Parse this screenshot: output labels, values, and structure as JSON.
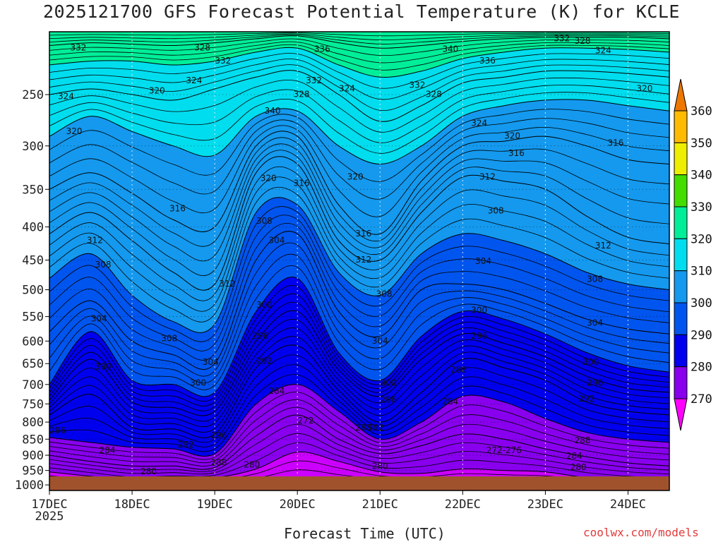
{
  "chart_data": {
    "type": "heatmap",
    "title": "2025121700 GFS Forecast Potential Temperature (K) for KCLE",
    "xlabel": "Forecast Time (UTC)",
    "ylabel": "",
    "credit": "coolwx.com/models",
    "x_ticks": [
      {
        "label": "17DEC",
        "sub": "2025",
        "day": 0
      },
      {
        "label": "18DEC",
        "sub": "",
        "day": 1
      },
      {
        "label": "19DEC",
        "sub": "",
        "day": 2
      },
      {
        "label": "20DEC",
        "sub": "",
        "day": 3
      },
      {
        "label": "21DEC",
        "sub": "",
        "day": 4
      },
      {
        "label": "22DEC",
        "sub": "",
        "day": 5
      },
      {
        "label": "23DEC",
        "sub": "",
        "day": 6
      },
      {
        "label": "24DEC",
        "sub": "",
        "day": 7
      }
    ],
    "xlim": [
      0,
      7.5
    ],
    "y_ticks": [
      250,
      300,
      350,
      400,
      450,
      500,
      550,
      600,
      650,
      700,
      750,
      800,
      850,
      900,
      950,
      1000
    ],
    "ylim": [
      200,
      1020
    ],
    "y_scale": "log",
    "colorbar": {
      "levels": [
        270,
        280,
        290,
        300,
        310,
        320,
        330,
        340,
        350,
        360
      ],
      "colors": [
        "#ff00ff",
        "#cc00ff",
        "#8800ee",
        "#0000ee",
        "#0055ee",
        "#1499ee",
        "#00ddee",
        "#00ee99",
        "#44dd00",
        "#eeee00",
        "#ffbb00",
        "#ee7700"
      ]
    },
    "times": [
      0,
      0.5,
      1,
      1.5,
      2,
      2.5,
      3,
      3.5,
      4,
      4.5,
      5,
      5.5,
      6,
      6.5,
      7,
      7.5
    ],
    "isentropes": [
      {
        "theta": 272,
        "p": [
          1010,
          1010,
          1010,
          1010,
          1010,
          1010,
          1010,
          1010,
          1010,
          1010,
          1010,
          1010,
          1010,
          1010,
          1010,
          1010
        ]
      },
      {
        "theta": 280,
        "p": [
          955,
          970,
          985,
          980,
          975,
          945,
          890,
          920,
          955,
          960,
          945,
          950,
          955,
          975,
          985,
          990
        ]
      },
      {
        "theta": 284,
        "p": [
          900,
          920,
          935,
          935,
          940,
          840,
          780,
          850,
          895,
          870,
          835,
          850,
          880,
          905,
          925,
          935
        ]
      },
      {
        "theta": 288,
        "p": [
          845,
          860,
          875,
          880,
          895,
          750,
          700,
          770,
          850,
          800,
          730,
          745,
          790,
          830,
          850,
          860
        ]
      },
      {
        "theta": 292,
        "p": [
          780,
          725,
          815,
          820,
          835,
          660,
          610,
          715,
          800,
          720,
          640,
          660,
          690,
          745,
          770,
          780
        ]
      },
      {
        "theta": 296,
        "p": [
          740,
          640,
          745,
          760,
          770,
          600,
          540,
          665,
          730,
          640,
          585,
          605,
          635,
          680,
          710,
          720
        ]
      },
      {
        "theta": 300,
        "p": [
          700,
          580,
          690,
          700,
          720,
          540,
          480,
          625,
          690,
          590,
          540,
          555,
          585,
          625,
          655,
          670
        ]
      },
      {
        "theta": 304,
        "p": [
          580,
          520,
          600,
          630,
          650,
          450,
          410,
          540,
          590,
          500,
          490,
          500,
          525,
          555,
          575,
          585
        ]
      },
      {
        "theta": 308,
        "p": [
          480,
          440,
          510,
          560,
          565,
          380,
          370,
          470,
          510,
          440,
          410,
          420,
          440,
          470,
          490,
          500
        ]
      },
      {
        "theta": 312,
        "p": [
          410,
          380,
          420,
          470,
          490,
          330,
          320,
          420,
          450,
          380,
          335,
          340,
          350,
          385,
          415,
          425
        ]
      },
      {
        "theta": 316,
        "p": [
          350,
          330,
          355,
          390,
          400,
          300,
          290,
          370,
          410,
          340,
          300,
          295,
          290,
          300,
          315,
          320
        ]
      },
      {
        "theta": 320,
        "p": [
          290,
          270,
          285,
          300,
          310,
          270,
          265,
          300,
          320,
          300,
          270,
          260,
          255,
          255,
          260,
          265
        ]
      },
      {
        "theta": 324,
        "p": [
          250,
          245,
          250,
          255,
          245,
          235,
          230,
          250,
          275,
          260,
          240,
          235,
          230,
          230,
          232,
          235
        ]
      },
      {
        "theta": 328,
        "p": [
          225,
          222,
          222,
          225,
          222,
          215,
          212,
          225,
          235,
          230,
          220,
          215,
          212,
          212,
          213,
          215
        ]
      },
      {
        "theta": 332,
        "p": [
          210,
          208,
          209,
          210,
          208,
          205,
          203,
          208,
          212,
          210,
          207,
          205,
          204,
          204,
          204,
          205
        ]
      },
      {
        "theta": 340,
        "p": [
          200,
          200,
          200,
          200,
          200,
          200,
          200,
          200,
          200,
          200,
          200,
          200,
          200,
          200,
          200,
          200
        ]
      }
    ],
    "contour_labels": [
      {
        "text": "332",
        "t": 0.35,
        "p": 212
      },
      {
        "text": "328",
        "t": 1.85,
        "p": 212
      },
      {
        "text": "332",
        "t": 2.1,
        "p": 222
      },
      {
        "text": "336",
        "t": 3.3,
        "p": 213
      },
      {
        "text": "340",
        "t": 4.85,
        "p": 213
      },
      {
        "text": "336",
        "t": 5.3,
        "p": 222
      },
      {
        "text": "332",
        "t": 6.2,
        "p": 205
      },
      {
        "text": "328",
        "t": 6.45,
        "p": 207
      },
      {
        "text": "324",
        "t": 6.7,
        "p": 214
      },
      {
        "text": "324",
        "t": 0.2,
        "p": 252
      },
      {
        "text": "320",
        "t": 1.3,
        "p": 247
      },
      {
        "text": "324",
        "t": 1.75,
        "p": 238
      },
      {
        "text": "332",
        "t": 3.2,
        "p": 238
      },
      {
        "text": "328",
        "t": 3.05,
        "p": 250
      },
      {
        "text": "324",
        "t": 3.6,
        "p": 245
      },
      {
        "text": "332",
        "t": 4.45,
        "p": 242
      },
      {
        "text": "328",
        "t": 4.65,
        "p": 250
      },
      {
        "text": "324",
        "t": 5.2,
        "p": 277
      },
      {
        "text": "320",
        "t": 7.2,
        "p": 245
      },
      {
        "text": "340",
        "t": 2.7,
        "p": 265
      },
      {
        "text": "320",
        "t": 0.3,
        "p": 285
      },
      {
        "text": "320",
        "t": 5.6,
        "p": 290
      },
      {
        "text": "316",
        "t": 5.65,
        "p": 308
      },
      {
        "text": "316",
        "t": 6.85,
        "p": 297
      },
      {
        "text": "312",
        "t": 5.3,
        "p": 335
      },
      {
        "text": "320",
        "t": 2.65,
        "p": 337
      },
      {
        "text": "316",
        "t": 3.05,
        "p": 343
      },
      {
        "text": "320",
        "t": 3.7,
        "p": 335
      },
      {
        "text": "316",
        "t": 1.55,
        "p": 375
      },
      {
        "text": "308",
        "t": 2.6,
        "p": 392
      },
      {
        "text": "308",
        "t": 5.4,
        "p": 378
      },
      {
        "text": "304",
        "t": 2.75,
        "p": 420
      },
      {
        "text": "316",
        "t": 3.8,
        "p": 410
      },
      {
        "text": "312",
        "t": 0.55,
        "p": 420
      },
      {
        "text": "312",
        "t": 6.7,
        "p": 428
      },
      {
        "text": "312",
        "t": 3.8,
        "p": 450
      },
      {
        "text": "304",
        "t": 5.25,
        "p": 452
      },
      {
        "text": "308",
        "t": 0.65,
        "p": 458
      },
      {
        "text": "308",
        "t": 6.6,
        "p": 482
      },
      {
        "text": "312",
        "t": 2.15,
        "p": 490
      },
      {
        "text": "308",
        "t": 4.05,
        "p": 508
      },
      {
        "text": "300",
        "t": 2.6,
        "p": 528
      },
      {
        "text": "304",
        "t": 0.6,
        "p": 555
      },
      {
        "text": "300",
        "t": 5.2,
        "p": 538
      },
      {
        "text": "304",
        "t": 6.6,
        "p": 563
      },
      {
        "text": "296",
        "t": 2.55,
        "p": 590
      },
      {
        "text": "296",
        "t": 5.2,
        "p": 590
      },
      {
        "text": "308",
        "t": 1.45,
        "p": 595
      },
      {
        "text": "304",
        "t": 4.0,
        "p": 600
      },
      {
        "text": "304",
        "t": 1.95,
        "p": 647
      },
      {
        "text": "292",
        "t": 2.6,
        "p": 645
      },
      {
        "text": "300",
        "t": 6.55,
        "p": 647
      },
      {
        "text": "300",
        "t": 0.65,
        "p": 658
      },
      {
        "text": "288",
        "t": 4.95,
        "p": 665
      },
      {
        "text": "300",
        "t": 1.8,
        "p": 697
      },
      {
        "text": "300",
        "t": 4.1,
        "p": 697
      },
      {
        "text": "296",
        "t": 6.6,
        "p": 697
      },
      {
        "text": "284",
        "t": 2.75,
        "p": 717
      },
      {
        "text": "296",
        "t": 4.1,
        "p": 740
      },
      {
        "text": "292",
        "t": 6.5,
        "p": 737
      },
      {
        "text": "284",
        "t": 4.85,
        "p": 745
      },
      {
        "text": "272",
        "t": 3.1,
        "p": 797
      },
      {
        "text": "296",
        "t": 0.1,
        "p": 825
      },
      {
        "text": "288",
        "t": 3.8,
        "p": 817
      },
      {
        "text": "292",
        "t": 3.95,
        "p": 817
      },
      {
        "text": "296",
        "t": 2.05,
        "p": 840
      },
      {
        "text": "292",
        "t": 1.65,
        "p": 868
      },
      {
        "text": "288",
        "t": 6.45,
        "p": 855
      },
      {
        "text": "284",
        "t": 0.7,
        "p": 885
      },
      {
        "text": "272-276",
        "t": 5.5,
        "p": 885
      },
      {
        "text": "284",
        "t": 6.35,
        "p": 903
      },
      {
        "text": "288",
        "t": 2.05,
        "p": 925
      },
      {
        "text": "280",
        "t": 2.45,
        "p": 932
      },
      {
        "text": "280",
        "t": 4.0,
        "p": 937
      },
      {
        "text": "280",
        "t": 6.4,
        "p": 940
      },
      {
        "text": "280",
        "t": 1.2,
        "p": 955
      }
    ]
  }
}
